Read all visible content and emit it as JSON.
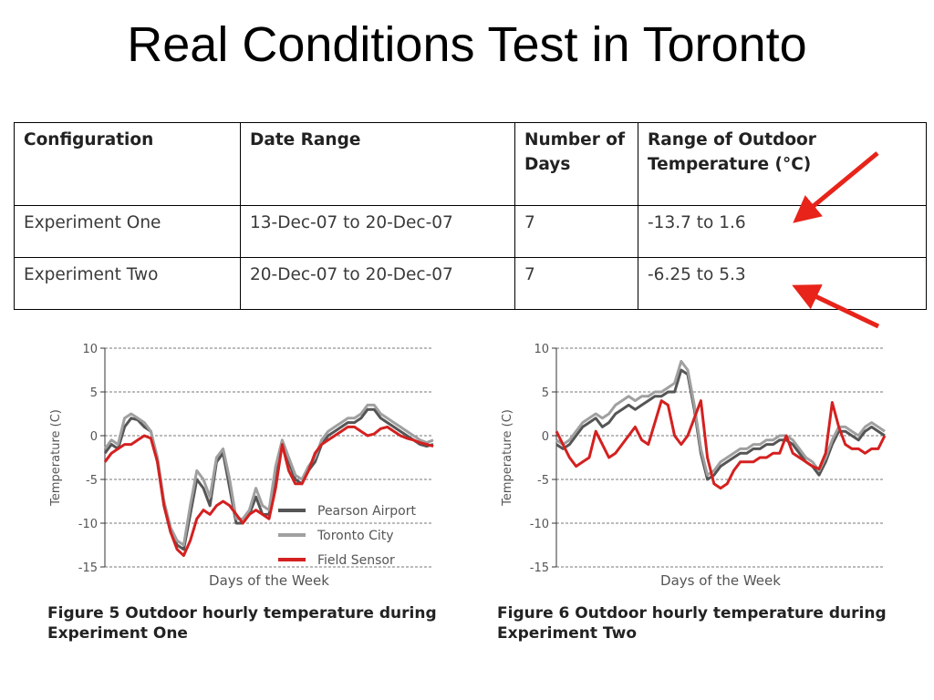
{
  "slide": {
    "title": "Real Conditions Test in Toronto"
  },
  "table": {
    "headers": [
      "Configuration",
      "Date Range",
      "Number of Days",
      "Range of Outdoor Temperature (°C)"
    ],
    "rows": [
      [
        "Experiment One",
        "13-Dec-07 to 20-Dec-07",
        "7",
        "-13.7 to 1.6"
      ],
      [
        "Experiment Two",
        "20-Dec-07 to 20-Dec-07",
        "7",
        "-6.25 to 5.3"
      ]
    ]
  },
  "arrow_color": "#e8231a",
  "chart_data": [
    {
      "type": "line",
      "title": "",
      "caption_line1": "Figure 5 Outdoor hourly temperature during",
      "caption_line2": "Experiment One",
      "xlabel": "Days of the Week",
      "ylabel": "Temperature (C)",
      "ylim": [
        -15,
        10
      ],
      "yticks": [
        "10",
        "5",
        "0",
        "-5",
        "-10",
        "-15"
      ],
      "ytick_values": [
        10,
        5,
        0,
        -5,
        -10,
        -15
      ],
      "grid": true,
      "legend_position": "bottom-right",
      "x": [
        0,
        2,
        4,
        6,
        8,
        10,
        12,
        14,
        16,
        18,
        20,
        22,
        24,
        26,
        28,
        30,
        32,
        34,
        36,
        38,
        40,
        42,
        44,
        46,
        48,
        50,
        52,
        54,
        56,
        58,
        60,
        62,
        64,
        66,
        68,
        70,
        72,
        74,
        76,
        78,
        80,
        82,
        84,
        86,
        88,
        90,
        92,
        94,
        96,
        98,
        100
      ],
      "series": [
        {
          "name": "Pearson  Airport",
          "color": "#555555",
          "values": [
            -2,
            -1,
            -1.5,
            1,
            2,
            1.8,
            1,
            0.5,
            -3,
            -8,
            -11,
            -12.5,
            -13,
            -9,
            -5,
            -6,
            -8,
            -3,
            -2,
            -6,
            -10,
            -10,
            -9,
            -7,
            -9,
            -9,
            -4,
            -1,
            -3,
            -5,
            -5.5,
            -4,
            -3,
            -1,
            0,
            0.5,
            1,
            1.5,
            1.5,
            2,
            3,
            3,
            2,
            1.5,
            1,
            0.5,
            0,
            -0.5,
            -1,
            -1.2,
            -1
          ]
        },
        {
          "name": "Toronto  City",
          "color": "#a0a0a0",
          "values": [
            -1.5,
            -0.5,
            -1,
            2,
            2.5,
            2,
            1.5,
            0.5,
            -2.5,
            -7.5,
            -10.5,
            -12,
            -12.5,
            -8,
            -4,
            -5,
            -7,
            -2.5,
            -1.5,
            -5,
            -9.5,
            -9.5,
            -8.5,
            -6,
            -8,
            -8.5,
            -3.5,
            -0.5,
            -2.5,
            -4.5,
            -5,
            -3.5,
            -2.5,
            -0.5,
            0.5,
            1,
            1.5,
            2,
            2,
            2.5,
            3.5,
            3.5,
            2.5,
            2,
            1.5,
            1,
            0.5,
            0,
            -0.5,
            -0.8,
            -0.5
          ]
        },
        {
          "name": "Field  Sensor",
          "color": "#d42020",
          "values": [
            -3,
            -2,
            -1.5,
            -1,
            -1,
            -0.5,
            0,
            -0.3,
            -3,
            -8,
            -11,
            -13,
            -13.7,
            -12,
            -9.5,
            -8.5,
            -9,
            -8,
            -7.5,
            -8,
            -9,
            -10,
            -9,
            -8.5,
            -9,
            -9.5,
            -6,
            -1,
            -4,
            -5.5,
            -5.5,
            -4,
            -2,
            -1,
            -0.5,
            0,
            0.5,
            1,
            1,
            0.5,
            0,
            0.2,
            0.8,
            1,
            0.5,
            0,
            -0.3,
            -0.5,
            -0.8,
            -1,
            -1.2
          ]
        }
      ]
    },
    {
      "type": "line",
      "title": "",
      "caption_line1": "Figure 6 Outdoor hourly temperature during",
      "caption_line2": "Experiment Two",
      "xlabel": "Days of the Week",
      "ylabel": "Temperature (C)",
      "ylim": [
        -15,
        10
      ],
      "yticks": [
        "10",
        "5",
        "0",
        "-5",
        "-10",
        "-15"
      ],
      "ytick_values": [
        10,
        5,
        0,
        -5,
        -10,
        -15
      ],
      "grid": true,
      "x": [
        0,
        2,
        4,
        6,
        8,
        10,
        12,
        14,
        16,
        18,
        20,
        22,
        24,
        26,
        28,
        30,
        32,
        34,
        36,
        38,
        40,
        42,
        44,
        46,
        48,
        50,
        52,
        54,
        56,
        58,
        60,
        62,
        64,
        66,
        68,
        70,
        72,
        74,
        76,
        78,
        80,
        82,
        84,
        86,
        88,
        90,
        92,
        94,
        96,
        98,
        100
      ],
      "series": [
        {
          "name": "Pearson Airport",
          "color": "#555555",
          "values": [
            -1,
            -1.5,
            -1,
            0,
            1,
            1.5,
            2,
            1,
            1.5,
            2.5,
            3,
            3.5,
            3,
            3.5,
            4,
            4.5,
            4.5,
            5,
            5,
            7.5,
            7,
            3,
            -2,
            -5,
            -4.5,
            -3.5,
            -3,
            -2.5,
            -2,
            -2,
            -1.5,
            -1.5,
            -1,
            -1,
            -0.5,
            -0.5,
            -1,
            -2,
            -3,
            -3.5,
            -4.5,
            -3,
            -1,
            0.5,
            0.5,
            0,
            -0.5,
            0.5,
            1,
            0.5,
            0
          ]
        },
        {
          "name": "Toronto City",
          "color": "#a0a0a0",
          "values": [
            -0.5,
            -1,
            -0.5,
            0.5,
            1.5,
            2,
            2.5,
            2,
            2.5,
            3.5,
            4,
            4.5,
            4,
            4.5,
            4.5,
            5,
            5,
            5.5,
            6,
            8.5,
            7.5,
            3.5,
            -1.5,
            -4.5,
            -4,
            -3,
            -2.5,
            -2,
            -1.5,
            -1.5,
            -1,
            -1,
            -0.5,
            -0.5,
            0,
            0,
            -0.5,
            -1.5,
            -2.5,
            -3,
            -4,
            -2.5,
            -0.5,
            1,
            1,
            0.5,
            0,
            1,
            1.5,
            1,
            0.5
          ]
        },
        {
          "name": "Field Sensor",
          "color": "#d42020",
          "values": [
            0.5,
            -1,
            -2.5,
            -3.5,
            -3,
            -2.5,
            0.5,
            -1,
            -2.5,
            -2,
            -1,
            0,
            1,
            -0.5,
            -1,
            1.5,
            4,
            3.5,
            0,
            -1,
            0,
            2,
            4,
            -2.5,
            -5.5,
            -6,
            -5.5,
            -4,
            -3,
            -3,
            -3,
            -2.5,
            -2.5,
            -2,
            -2,
            0,
            -2,
            -2.5,
            -3,
            -3.5,
            -3.8,
            -2,
            3.8,
            1,
            -1,
            -1.5,
            -1.5,
            -2,
            -1.5,
            -1.5,
            0
          ]
        }
      ]
    }
  ]
}
